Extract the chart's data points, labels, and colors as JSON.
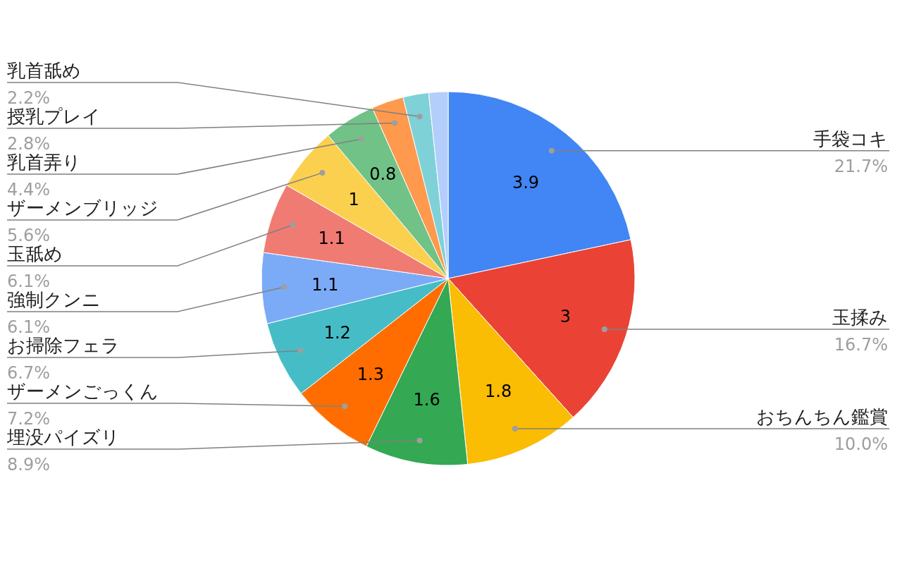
{
  "chart_data": {
    "type": "pie",
    "categories": [
      "手袋コキ",
      "玉揉み",
      "おちんちん鑑賞",
      "埋没パイズリ",
      "ザーメンごっくん",
      "お掃除フェラ",
      "強制クンニ",
      "玉舐め",
      "ザーメンブリッジ",
      "乳首弄り",
      "授乳プレイ",
      "乳首舐め",
      null
    ],
    "values": [
      3.9,
      3,
      1.8,
      1.6,
      1.3,
      1.2,
      1.1,
      1.1,
      1,
      0.8,
      0.5,
      0.4,
      0.3
    ],
    "colors": [
      "#4285f4",
      "#ea4335",
      "#fbbc04",
      "#34a853",
      "#ff6d01",
      "#46bdc6",
      "#7baaf7",
      "#f07b72",
      "#fcd04f",
      "#71c287",
      "#ff994d",
      "#7ed1d7",
      "#b3cefb"
    ],
    "value_labels": [
      "3.9",
      "3",
      "1.8",
      "1.6",
      "1.3",
      "1.2",
      "1.1",
      "1.1",
      "1",
      "0.8",
      null,
      null,
      null
    ],
    "annotations": [
      "21.7%",
      "16.7%",
      "10.0%",
      "8.9%",
      "7.2%",
      "6.7%",
      "6.1%",
      "6.1%",
      "5.6%",
      "4.4%",
      "2.8%",
      "2.2%"
    ]
  }
}
